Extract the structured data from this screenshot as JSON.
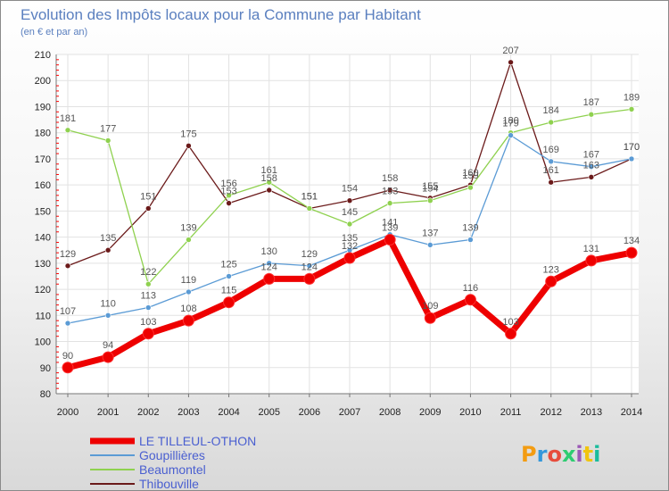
{
  "chart_data": {
    "type": "line",
    "title": "Evolution des Impôts locaux pour la Commune par Habitant",
    "subtitle": "(en € et par an)",
    "x": [
      "2000",
      "2001",
      "2002",
      "2003",
      "2004",
      "2005",
      "2006",
      "2007",
      "2008",
      "2009",
      "2010",
      "2011",
      "2012",
      "2013",
      "2014"
    ],
    "yticks": [
      "80",
      "90",
      "100",
      "110",
      "120",
      "130",
      "140",
      "150",
      "160",
      "170",
      "180",
      "190",
      "200",
      "210"
    ],
    "ylim": [
      80,
      210
    ],
    "grid": true,
    "legend_position": "bottom-left",
    "series": [
      {
        "name": "LE TILLEUL-OTHON",
        "color": "#ee0000",
        "values": [
          90,
          94,
          103,
          108,
          115,
          124,
          124,
          132,
          139,
          109,
          116,
          103,
          123,
          131,
          134
        ],
        "labels": [
          "90",
          "94",
          "103",
          "108",
          "115",
          "124",
          "124",
          "132",
          "139",
          "109",
          "116",
          "103",
          "123",
          "131",
          "134"
        ]
      },
      {
        "name": "Goupillières",
        "color": "#5b9bd5",
        "values": [
          107,
          110,
          113,
          119,
          125,
          130,
          129,
          135,
          141,
          137,
          139,
          179,
          169,
          167,
          170
        ],
        "labels": [
          "107",
          "110",
          "113",
          "119",
          "125",
          "130",
          "129",
          "135",
          "141",
          "137",
          "139",
          "179",
          "169",
          "167",
          "170"
        ]
      },
      {
        "name": "Beaumontel",
        "color": "#8fd14f",
        "values": [
          181,
          177,
          122,
          139,
          156,
          161,
          151,
          145,
          153,
          154,
          159,
          180,
          184,
          187,
          189
        ],
        "labels": [
          "181",
          "177",
          "122",
          "139",
          "156",
          "161",
          "151",
          "145",
          "153",
          "154",
          "159",
          "180",
          "184",
          "187",
          "189"
        ]
      },
      {
        "name": "Thibouville",
        "color": "#6b1a1a",
        "values": [
          129,
          135,
          151,
          175,
          153,
          158,
          151,
          154,
          158,
          155,
          160,
          207,
          161,
          163,
          170
        ],
        "labels": [
          "129",
          "135",
          "151",
          "175",
          "153",
          "158",
          "151",
          "154",
          "158",
          "155",
          "160",
          "207",
          "161",
          "163",
          "170"
        ]
      }
    ]
  },
  "logo": {
    "text": "Proxiti",
    "colors": [
      "#f39c12",
      "#3498db",
      "#e74c3c",
      "#2ecc71",
      "#9b59b6",
      "#f1c40f",
      "#1abc9c"
    ]
  }
}
